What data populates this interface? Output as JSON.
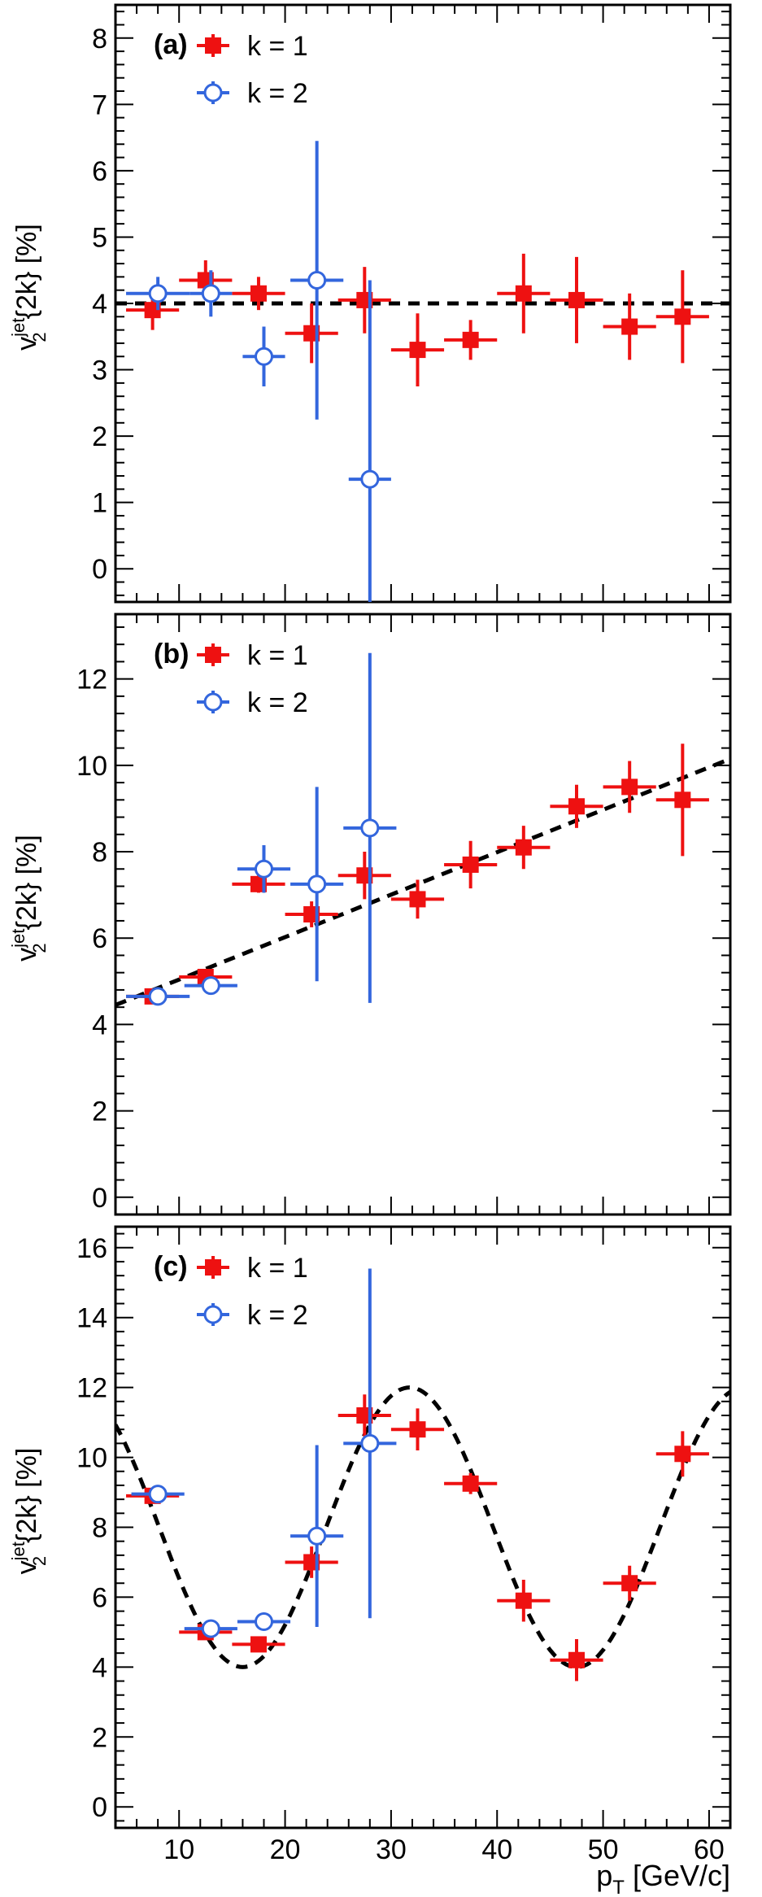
{
  "chart_data": [
    {
      "type": "scatter",
      "panel_label": "(a)",
      "ylabel": {
        "base": "v",
        "sup": "jet",
        "sub": "2",
        "rest": "{2k} [%]"
      },
      "xlim": [
        4,
        62
      ],
      "ylim": [
        -0.5,
        8.5
      ],
      "yticks": [
        0,
        1,
        2,
        3,
        4,
        5,
        6,
        7,
        8
      ],
      "yticks_shown": true,
      "xticks": [
        10,
        20,
        30,
        40,
        50,
        60
      ],
      "xticklabels_shown": false,
      "legend": [
        "k = 1",
        "k = 2"
      ],
      "legend_position": "top-left",
      "colors": {
        "k1": "#ee1111",
        "k2": "#3366dd",
        "fit": "#000000"
      },
      "series": [
        {
          "name": "k = 1",
          "marker": "filled-square",
          "points": [
            {
              "x": 7.5,
              "y": 3.9,
              "xerr": 2.5,
              "yerr": 0.3
            },
            {
              "x": 12.5,
              "y": 4.35,
              "xerr": 2.5,
              "yerr": 0.3
            },
            {
              "x": 17.5,
              "y": 4.15,
              "xerr": 2.5,
              "yerr": 0.25
            },
            {
              "x": 22.5,
              "y": 3.55,
              "xerr": 2.5,
              "yerr": 0.45
            },
            {
              "x": 27.5,
              "y": 4.05,
              "xerr": 2.5,
              "yerr": 0.5
            },
            {
              "x": 32.5,
              "y": 3.3,
              "xerr": 2.5,
              "yerr": 0.55
            },
            {
              "x": 37.5,
              "y": 3.45,
              "xerr": 2.5,
              "yerr": 0.3
            },
            {
              "x": 42.5,
              "y": 4.15,
              "xerr": 2.5,
              "yerr": 0.6
            },
            {
              "x": 47.5,
              "y": 4.05,
              "xerr": 2.5,
              "yerr": 0.65
            },
            {
              "x": 52.5,
              "y": 3.65,
              "xerr": 2.5,
              "yerr": 0.5
            },
            {
              "x": 57.5,
              "y": 3.8,
              "xerr": 2.5,
              "yerr": 0.7
            }
          ]
        },
        {
          "name": "k = 2",
          "marker": "open-circle",
          "points": [
            {
              "x": 8,
              "y": 4.15,
              "xerr": 3,
              "yerr": 0.25
            },
            {
              "x": 13,
              "y": 4.15,
              "xerr": 2,
              "yerr": 0.35
            },
            {
              "x": 18,
              "y": 3.2,
              "xerr": 2,
              "yerr": 0.45
            },
            {
              "x": 23,
              "y": 4.35,
              "xerr": 2.5,
              "yerr": 2.1
            },
            {
              "x": 28,
              "y": 1.35,
              "xerr": 2,
              "yerr": 3.0
            }
          ]
        }
      ],
      "fit": {
        "type": "constant",
        "value": 4.0,
        "style": "dashed"
      }
    },
    {
      "type": "scatter",
      "panel_label": "(b)",
      "ylabel": {
        "base": "v",
        "sup": "jet",
        "sub": "2",
        "rest": "{2k} [%]"
      },
      "xlim": [
        4,
        62
      ],
      "ylim": [
        -0.4,
        13.5
      ],
      "yticks": [
        0,
        2,
        4,
        6,
        8,
        10,
        12
      ],
      "yticks_shown": true,
      "xticks": [
        10,
        20,
        30,
        40,
        50,
        60
      ],
      "xticklabels_shown": false,
      "legend": [
        "k = 1",
        "k = 2"
      ],
      "legend_position": "top-left",
      "colors": {
        "k1": "#ee1111",
        "k2": "#3366dd",
        "fit": "#000000"
      },
      "series": [
        {
          "name": "k = 1",
          "marker": "filled-square",
          "points": [
            {
              "x": 7.5,
              "y": 4.65,
              "xerr": 2.5,
              "yerr": 0.15
            },
            {
              "x": 12.5,
              "y": 5.1,
              "xerr": 2.5,
              "yerr": 0.15
            },
            {
              "x": 17.5,
              "y": 7.25,
              "xerr": 2.5,
              "yerr": 0.2
            },
            {
              "x": 22.5,
              "y": 6.55,
              "xerr": 2.5,
              "yerr": 0.3
            },
            {
              "x": 27.5,
              "y": 7.45,
              "xerr": 2.5,
              "yerr": 0.55
            },
            {
              "x": 32.5,
              "y": 6.9,
              "xerr": 2.5,
              "yerr": 0.45
            },
            {
              "x": 37.5,
              "y": 7.7,
              "xerr": 2.5,
              "yerr": 0.55
            },
            {
              "x": 42.5,
              "y": 8.1,
              "xerr": 2.5,
              "yerr": 0.5
            },
            {
              "x": 47.5,
              "y": 9.05,
              "xerr": 2.5,
              "yerr": 0.5
            },
            {
              "x": 52.5,
              "y": 9.5,
              "xerr": 2.5,
              "yerr": 0.6
            },
            {
              "x": 57.5,
              "y": 9.2,
              "xerr": 2.5,
              "yerr": 1.3
            }
          ]
        },
        {
          "name": "k = 2",
          "marker": "open-circle",
          "points": [
            {
              "x": 8,
              "y": 4.65,
              "xerr": 3,
              "yerr": 0.1
            },
            {
              "x": 13,
              "y": 4.9,
              "xerr": 2.5,
              "yerr": 0.1
            },
            {
              "x": 18,
              "y": 7.6,
              "xerr": 2.5,
              "yerr": 0.55
            },
            {
              "x": 23,
              "y": 7.25,
              "xerr": 2.5,
              "yerr": 2.25
            },
            {
              "x": 28,
              "y": 8.55,
              "xerr": 2.5,
              "yerr": 4.05
            }
          ]
        }
      ],
      "fit": {
        "type": "linear",
        "points": [
          [
            4,
            4.45
          ],
          [
            62,
            10.15
          ]
        ],
        "style": "dashed"
      }
    },
    {
      "type": "scatter",
      "panel_label": "(c)",
      "ylabel": {
        "base": "v",
        "sup": "jet",
        "sub": "2",
        "rest": "{2k} [%]"
      },
      "xlim": [
        4,
        62
      ],
      "ylim": [
        -0.6,
        16.6
      ],
      "yticks": [
        0,
        2,
        4,
        6,
        8,
        10,
        12,
        14,
        16
      ],
      "yticks_shown": true,
      "xticks": [
        10,
        20,
        30,
        40,
        50,
        60
      ],
      "xticklabels_shown": true,
      "xlabel": {
        "base": "p",
        "sub": "T",
        "rest": " [GeV/c]"
      },
      "legend": [
        "k = 1",
        "k = 2"
      ],
      "legend_position": "top-left",
      "colors": {
        "k1": "#ee1111",
        "k2": "#3366dd",
        "fit": "#000000"
      },
      "series": [
        {
          "name": "k = 1",
          "marker": "filled-square",
          "points": [
            {
              "x": 7.5,
              "y": 8.9,
              "xerr": 2.5,
              "yerr": 0.15
            },
            {
              "x": 12.5,
              "y": 5.0,
              "xerr": 2.5,
              "yerr": 0.2
            },
            {
              "x": 17.5,
              "y": 4.65,
              "xerr": 2.5,
              "yerr": 0.2
            },
            {
              "x": 22.5,
              "y": 7.0,
              "xerr": 2.5,
              "yerr": 0.45
            },
            {
              "x": 27.5,
              "y": 11.2,
              "xerr": 2.5,
              "yerr": 0.6
            },
            {
              "x": 32.5,
              "y": 10.8,
              "xerr": 2.5,
              "yerr": 0.6
            },
            {
              "x": 37.5,
              "y": 9.25,
              "xerr": 2.5,
              "yerr": 0.3
            },
            {
              "x": 42.5,
              "y": 5.9,
              "xerr": 2.5,
              "yerr": 0.6
            },
            {
              "x": 47.5,
              "y": 4.2,
              "xerr": 2.5,
              "yerr": 0.6
            },
            {
              "x": 52.5,
              "y": 6.4,
              "xerr": 2.5,
              "yerr": 0.5
            },
            {
              "x": 57.5,
              "y": 10.1,
              "xerr": 2.5,
              "yerr": 0.65
            }
          ]
        },
        {
          "name": "k = 2",
          "marker": "open-circle",
          "points": [
            {
              "x": 8,
              "y": 8.95,
              "xerr": 2.5,
              "yerr": 0.1
            },
            {
              "x": 13,
              "y": 5.1,
              "xerr": 2.5,
              "yerr": 0.15
            },
            {
              "x": 18,
              "y": 5.3,
              "xerr": 2.5,
              "yerr": 0.15
            },
            {
              "x": 23,
              "y": 7.75,
              "xerr": 2.5,
              "yerr": 2.6
            },
            {
              "x": 28,
              "y": 10.4,
              "xerr": 2.5,
              "yerr": 5.0
            }
          ]
        }
      ],
      "fit": {
        "type": "sinusoid",
        "offset": 8.0,
        "amplitude": 4.0,
        "period": 31.5,
        "phase_x": 16.0,
        "style": "dashed"
      }
    }
  ]
}
